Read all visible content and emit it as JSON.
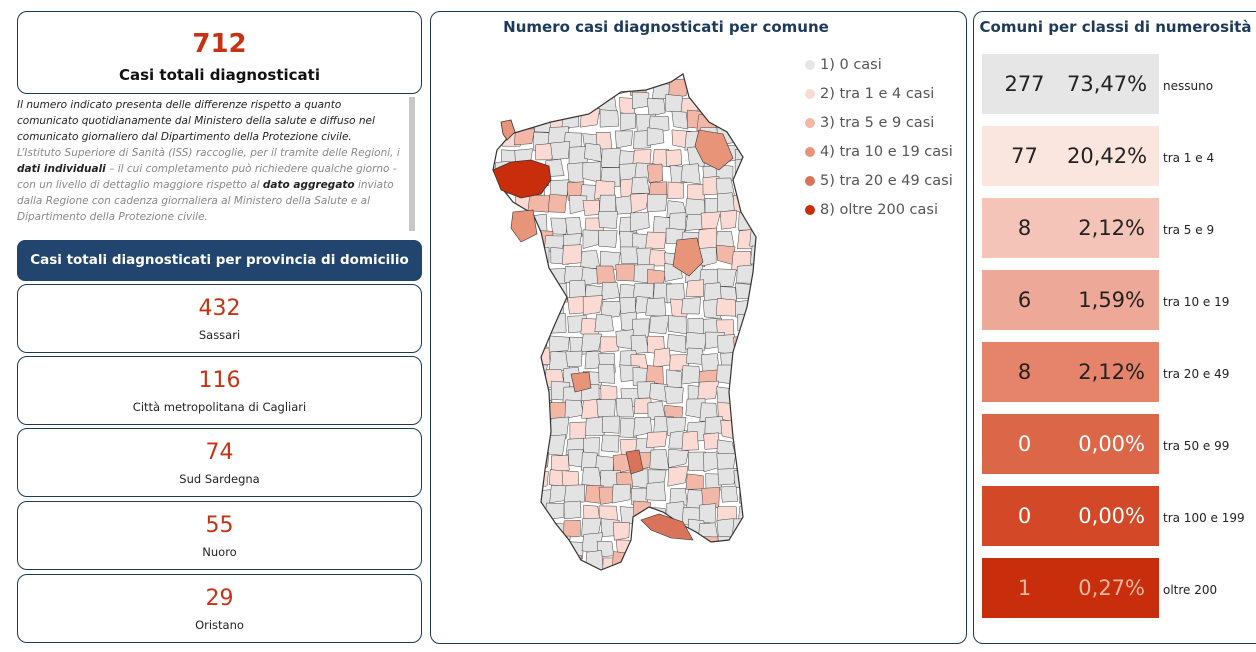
{
  "summary": {
    "total_value": "712",
    "total_label": "Casi totali diagnosticati"
  },
  "note": {
    "p1": "Il numero indicato presenta delle differenze rispetto a quanto comunicato quotidianamente dal Ministero della salute e diffuso nel comunicato giornaliero dal Dipartimento della Protezione civile.",
    "p2_a": "L’Istituto Superiore di Sanità (ISS) raccoglie, per il tramite delle Regioni, i ",
    "p2_b": "dati individuali",
    "p2_c": " – il cui completamento può richiedere qualche giorno - con un livello di dettaglio maggiore rispetto al ",
    "p2_d": "dato aggregato",
    "p2_e": " inviato dalla Regione con cadenza giornaliera al Ministero della Salute e al Dipartimento della Protezione civile."
  },
  "provinces": {
    "header": "Casi totali diagnosticati per provincia di domicilio",
    "items": [
      {
        "value": "432",
        "name": "Sassari"
      },
      {
        "value": "116",
        "name": "Città metropolitana di Cagliari"
      },
      {
        "value": "74",
        "name": "Sud Sardegna"
      },
      {
        "value": "55",
        "name": "Nuoro"
      },
      {
        "value": "29",
        "name": "Oristano"
      }
    ]
  },
  "map": {
    "title": "Numero casi diagnosticati per comune",
    "legend": [
      {
        "label": "1) 0 casi",
        "color": "#e6e6e6"
      },
      {
        "label": "2) tra 1 e 4 casi",
        "color": "#fadad2"
      },
      {
        "label": "3) tra 5 e 9 casi",
        "color": "#f3b7a8"
      },
      {
        "label": "4) tra 10 e 19 casi",
        "color": "#e89479"
      },
      {
        "label": "5) tra 20 e 49 casi",
        "color": "#d9735a"
      },
      {
        "label": "8) oltre 200 casi",
        "color": "#c82d0c"
      }
    ]
  },
  "chart_data": {
    "type": "table",
    "title": "Comuni per classi di numerosità",
    "rows": [
      {
        "count": "277",
        "percent": "73,47%",
        "label": "nessuno",
        "color": "#e6e6e6",
        "text_color": "#222222"
      },
      {
        "count": "77",
        "percent": "20,42%",
        "label": "tra 1 e 4",
        "color": "#fbe6df",
        "text_color": "#222222"
      },
      {
        "count": "8",
        "percent": "2,12%",
        "label": "tra 5 e 9",
        "color": "#f4c4b8",
        "text_color": "#222222"
      },
      {
        "count": "6",
        "percent": "1,59%",
        "label": "tra 10 e 19",
        "color": "#eea897",
        "text_color": "#222222"
      },
      {
        "count": "8",
        "percent": "2,12%",
        "label": "tra 20 e 49",
        "color": "#e5846b",
        "text_color": "#222222"
      },
      {
        "count": "0",
        "percent": "0,00%",
        "label": "tra 50 e 99",
        "color": "#dc6648",
        "text_color": "#ffffff"
      },
      {
        "count": "0",
        "percent": "0,00%",
        "label": "tra 100 e 199",
        "color": "#d34826",
        "text_color": "#ffffff"
      },
      {
        "count": "1",
        "percent": "0,27%",
        "label": "oltre 200",
        "color": "#c82d0c",
        "text_color": "#f5b6a0"
      }
    ]
  }
}
